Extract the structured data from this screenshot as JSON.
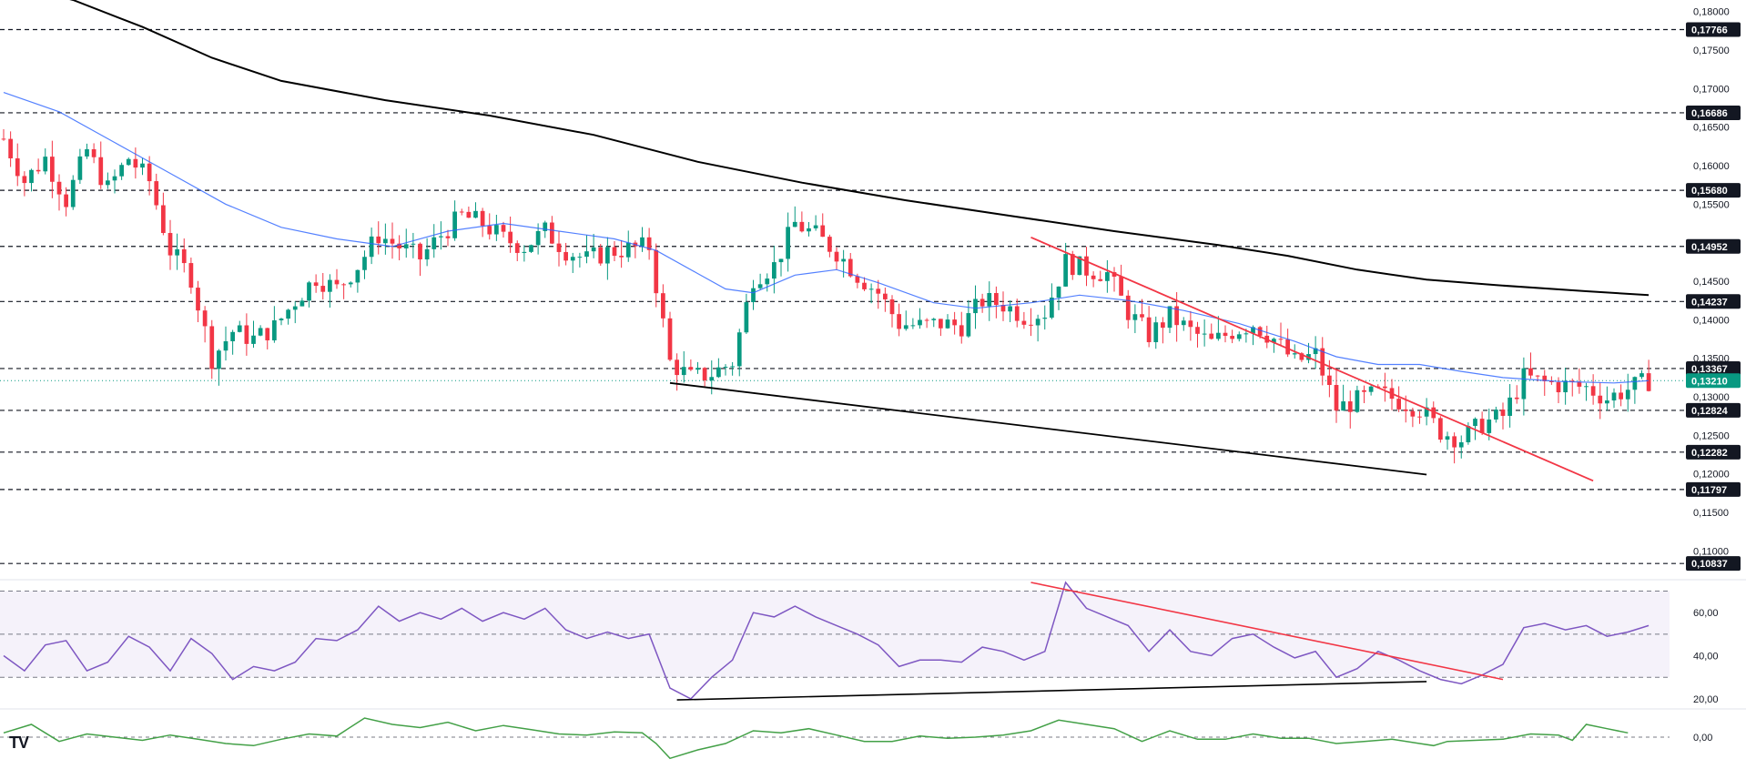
{
  "logo_text": "TV",
  "chart_data": [
    {
      "type": "candlestick",
      "pane": "price",
      "ylim": [
        0.1065,
        0.1815
      ],
      "x_range": [
        0,
        240
      ],
      "tick_labels": [
        "0,18000",
        "0,17500",
        "0,17000",
        "0,16500",
        "0,16000",
        "0,15500",
        "0,15000",
        "0,14500",
        "0,14000",
        "0,13500",
        "0,13000",
        "0,12500",
        "0,12000",
        "0,11500",
        "0,11000"
      ],
      "tick_values": [
        0.18,
        0.175,
        0.17,
        0.165,
        0.16,
        0.155,
        0.15,
        0.145,
        0.14,
        0.135,
        0.13,
        0.125,
        0.12,
        0.115,
        0.11
      ],
      "levels": [
        {
          "value": 0.17766,
          "label": "0,17766"
        },
        {
          "value": 0.16686,
          "label": "0,16686"
        },
        {
          "value": 0.1568,
          "label": "0,15680"
        },
        {
          "value": 0.14952,
          "label": "0,14952"
        },
        {
          "value": 0.14237,
          "label": "0,14237"
        },
        {
          "value": 0.13367,
          "label": "0,13367"
        },
        {
          "value": 0.12824,
          "label": "0,12824"
        },
        {
          "value": 0.12282,
          "label": "0,12282"
        },
        {
          "value": 0.11797,
          "label": "0,11797"
        },
        {
          "value": 0.10837,
          "label": "0,10837"
        }
      ],
      "current_price": {
        "value": 0.1321,
        "label": "0,13210"
      },
      "close_anchors": [
        [
          0,
          0.1635
        ],
        [
          3,
          0.158
        ],
        [
          6,
          0.161
        ],
        [
          9,
          0.1555
        ],
        [
          12,
          0.162
        ],
        [
          15,
          0.157
        ],
        [
          18,
          0.161
        ],
        [
          21,
          0.158
        ],
        [
          24,
          0.149
        ],
        [
          27,
          0.1455
        ],
        [
          30,
          0.135
        ],
        [
          33,
          0.1385
        ],
        [
          36,
          0.1375
        ],
        [
          39,
          0.139
        ],
        [
          42,
          0.1425
        ],
        [
          45,
          0.1455
        ],
        [
          48,
          0.144
        ],
        [
          51,
          0.147
        ],
        [
          54,
          0.151
        ],
        [
          57,
          0.1495
        ],
        [
          60,
          0.148
        ],
        [
          63,
          0.151
        ],
        [
          66,
          0.1535
        ],
        [
          69,
          0.1525
        ],
        [
          72,
          0.1505
        ],
        [
          75,
          0.1495
        ],
        [
          78,
          0.1515
        ],
        [
          81,
          0.149
        ],
        [
          84,
          0.1478
        ],
        [
          87,
          0.1488
        ],
        [
          90,
          0.1492
        ],
        [
          93,
          0.1495
        ],
        [
          96,
          0.1345
        ],
        [
          99,
          0.1325
        ],
        [
          102,
          0.133
        ],
        [
          105,
          0.1345
        ],
        [
          108,
          0.1455
        ],
        [
          111,
          0.147
        ],
        [
          114,
          0.1525
        ],
        [
          117,
          0.151
        ],
        [
          120,
          0.1488
        ],
        [
          123,
          0.1458
        ],
        [
          126,
          0.1435
        ],
        [
          129,
          0.1395
        ],
        [
          132,
          0.1392
        ],
        [
          135,
          0.1395
        ],
        [
          138,
          0.1392
        ],
        [
          141,
          0.1425
        ],
        [
          144,
          0.142
        ],
        [
          147,
          0.1405
        ],
        [
          150,
          0.141
        ],
        [
          153,
          0.1475
        ],
        [
          156,
          0.1465
        ],
        [
          159,
          0.146
        ],
        [
          162,
          0.141
        ],
        [
          165,
          0.138
        ],
        [
          168,
          0.1405
        ],
        [
          171,
          0.1385
        ],
        [
          174,
          0.137
        ],
        [
          177,
          0.1385
        ],
        [
          180,
          0.1395
        ],
        [
          183,
          0.1375
        ],
        [
          186,
          0.1345
        ],
        [
          189,
          0.1355
        ],
        [
          192,
          0.1285
        ],
        [
          195,
          0.1295
        ],
        [
          198,
          0.1305
        ],
        [
          201,
          0.1295
        ],
        [
          204,
          0.1285
        ],
        [
          207,
          0.1255
        ],
        [
          210,
          0.1245
        ],
        [
          213,
          0.1265
        ],
        [
          216,
          0.1275
        ],
        [
          219,
          0.1325
        ],
        [
          222,
          0.1318
        ],
        [
          225,
          0.1315
        ],
        [
          228,
          0.1312
        ],
        [
          231,
          0.1298
        ],
        [
          234,
          0.131
        ],
        [
          237,
          0.1321
        ]
      ],
      "sma50_anchors": [
        [
          0,
          0.1695
        ],
        [
          8,
          0.167
        ],
        [
          16,
          0.163
        ],
        [
          24,
          0.159
        ],
        [
          32,
          0.155
        ],
        [
          40,
          0.152
        ],
        [
          48,
          0.1505
        ],
        [
          56,
          0.1495
        ],
        [
          64,
          0.1515
        ],
        [
          72,
          0.1525
        ],
        [
          80,
          0.1515
        ],
        [
          88,
          0.1505
        ],
        [
          94,
          0.149
        ],
        [
          100,
          0.146
        ],
        [
          104,
          0.144
        ],
        [
          108,
          0.1435
        ],
        [
          114,
          0.1458
        ],
        [
          120,
          0.1465
        ],
        [
          126,
          0.1448
        ],
        [
          134,
          0.1422
        ],
        [
          140,
          0.1415
        ],
        [
          148,
          0.1422
        ],
        [
          155,
          0.1432
        ],
        [
          162,
          0.1425
        ],
        [
          170,
          0.1412
        ],
        [
          178,
          0.1395
        ],
        [
          186,
          0.1372
        ],
        [
          192,
          0.1352
        ],
        [
          198,
          0.1342
        ],
        [
          204,
          0.1342
        ],
        [
          210,
          0.1333
        ],
        [
          216,
          0.1325
        ],
        [
          224,
          0.132
        ],
        [
          232,
          0.1318
        ],
        [
          237,
          0.1321
        ]
      ],
      "sma200_anchors": [
        [
          0,
          0.1838
        ],
        [
          10,
          0.1815
        ],
        [
          20,
          0.178
        ],
        [
          30,
          0.174
        ],
        [
          40,
          0.171
        ],
        [
          55,
          0.1685
        ],
        [
          70,
          0.1665
        ],
        [
          85,
          0.164
        ],
        [
          100,
          0.1605
        ],
        [
          115,
          0.1578
        ],
        [
          130,
          0.1555
        ],
        [
          145,
          0.1535
        ],
        [
          160,
          0.1515
        ],
        [
          175,
          0.1497
        ],
        [
          185,
          0.1483
        ],
        [
          195,
          0.1465
        ],
        [
          205,
          0.1452
        ],
        [
          215,
          0.1445
        ],
        [
          228,
          0.1437
        ],
        [
          237,
          0.1432
        ]
      ],
      "trendlines": [
        {
          "name": "support",
          "color": "#000000",
          "points": [
            [
              96,
              0.1318
            ],
            [
              205,
              0.1199
            ]
          ]
        },
        {
          "name": "resistance",
          "color": "#f23645",
          "points": [
            [
              148,
              0.1507
            ],
            [
              229,
              0.1191
            ]
          ]
        }
      ]
    },
    {
      "type": "line",
      "pane": "rsi",
      "ylim": [
        17,
        74
      ],
      "tick_labels": [
        "60,00",
        "40,00",
        "20,00"
      ],
      "tick_values": [
        60,
        40,
        20
      ],
      "band": [
        30,
        70
      ],
      "midline": 50,
      "anchors": [
        [
          0,
          40
        ],
        [
          3,
          33
        ],
        [
          6,
          45
        ],
        [
          9,
          47
        ],
        [
          12,
          33
        ],
        [
          15,
          37
        ],
        [
          18,
          49
        ],
        [
          21,
          44
        ],
        [
          24,
          33
        ],
        [
          27,
          48
        ],
        [
          30,
          41
        ],
        [
          33,
          29
        ],
        [
          36,
          35
        ],
        [
          39,
          33
        ],
        [
          42,
          37
        ],
        [
          45,
          48
        ],
        [
          48,
          47
        ],
        [
          51,
          52
        ],
        [
          54,
          63
        ],
        [
          57,
          56
        ],
        [
          60,
          60
        ],
        [
          63,
          57
        ],
        [
          66,
          62
        ],
        [
          69,
          56
        ],
        [
          72,
          60
        ],
        [
          75,
          57
        ],
        [
          78,
          62
        ],
        [
          81,
          52
        ],
        [
          84,
          48
        ],
        [
          87,
          51
        ],
        [
          90,
          48
        ],
        [
          93,
          50
        ],
        [
          96,
          25
        ],
        [
          99,
          20
        ],
        [
          102,
          30
        ],
        [
          105,
          38
        ],
        [
          108,
          60
        ],
        [
          111,
          58
        ],
        [
          114,
          63
        ],
        [
          117,
          58
        ],
        [
          120,
          54
        ],
        [
          123,
          50
        ],
        [
          126,
          45
        ],
        [
          129,
          35
        ],
        [
          132,
          38
        ],
        [
          135,
          38
        ],
        [
          138,
          37
        ],
        [
          141,
          44
        ],
        [
          144,
          42
        ],
        [
          147,
          38
        ],
        [
          150,
          42
        ],
        [
          153,
          74
        ],
        [
          156,
          62
        ],
        [
          159,
          58
        ],
        [
          162,
          54
        ],
        [
          165,
          42
        ],
        [
          168,
          52
        ],
        [
          171,
          42
        ],
        [
          174,
          40
        ],
        [
          177,
          48
        ],
        [
          180,
          50
        ],
        [
          183,
          44
        ],
        [
          186,
          39
        ],
        [
          189,
          42
        ],
        [
          192,
          30
        ],
        [
          195,
          34
        ],
        [
          198,
          42
        ],
        [
          201,
          38
        ],
        [
          204,
          33
        ],
        [
          207,
          29
        ],
        [
          210,
          27
        ],
        [
          213,
          31
        ],
        [
          216,
          36
        ],
        [
          219,
          53
        ],
        [
          222,
          55
        ],
        [
          225,
          52
        ],
        [
          228,
          54
        ],
        [
          231,
          49
        ],
        [
          234,
          51
        ],
        [
          237,
          54
        ]
      ],
      "trendlines": [
        {
          "name": "rsi-support",
          "color": "#000000",
          "points": [
            [
              97,
              19.5
            ],
            [
              205,
              28
            ]
          ]
        },
        {
          "name": "rsi-resistance",
          "color": "#f23645",
          "points": [
            [
              148,
              74
            ],
            [
              216,
              29
            ]
          ]
        }
      ]
    },
    {
      "type": "line",
      "pane": "momentum",
      "ylim": [
        -0.03,
        0.024
      ],
      "tick_labels": [
        "0,00"
      ],
      "tick_values": [
        0
      ],
      "zero_line": 0,
      "anchors": [
        [
          0,
          0.004
        ],
        [
          4,
          0.012
        ],
        [
          8,
          -0.004
        ],
        [
          12,
          0.003
        ],
        [
          16,
          0
        ],
        [
          20,
          -0.003
        ],
        [
          24,
          0.002
        ],
        [
          28,
          -0.002
        ],
        [
          32,
          -0.006
        ],
        [
          36,
          -0.008
        ],
        [
          40,
          -0.002
        ],
        [
          44,
          0.003
        ],
        [
          48,
          0.001
        ],
        [
          52,
          0.018
        ],
        [
          56,
          0.012
        ],
        [
          60,
          0.009
        ],
        [
          64,
          0.014
        ],
        [
          68,
          0.006
        ],
        [
          72,
          0.011
        ],
        [
          76,
          0.007
        ],
        [
          80,
          0.003
        ],
        [
          84,
          0.002
        ],
        [
          88,
          0.005
        ],
        [
          92,
          0.004
        ],
        [
          94,
          -0.006
        ],
        [
          96,
          -0.02
        ],
        [
          100,
          -0.012
        ],
        [
          104,
          -0.006
        ],
        [
          108,
          0.006
        ],
        [
          112,
          0.004
        ],
        [
          116,
          0.008
        ],
        [
          120,
          0.002
        ],
        [
          124,
          -0.004
        ],
        [
          128,
          -0.004
        ],
        [
          132,
          0.001
        ],
        [
          136,
          -0.001
        ],
        [
          140,
          0
        ],
        [
          144,
          0.002
        ],
        [
          148,
          0.006
        ],
        [
          152,
          0.016
        ],
        [
          156,
          0.012
        ],
        [
          160,
          0.008
        ],
        [
          164,
          -0.004
        ],
        [
          168,
          0.006
        ],
        [
          172,
          -0.002
        ],
        [
          176,
          -0.002
        ],
        [
          180,
          0.003
        ],
        [
          184,
          -0.001
        ],
        [
          188,
          -0.001
        ],
        [
          192,
          -0.006
        ],
        [
          196,
          -0.004
        ],
        [
          200,
          -0.002
        ],
        [
          204,
          -0.006
        ],
        [
          206,
          -0.008
        ],
        [
          208,
          -0.004
        ],
        [
          212,
          -0.003
        ],
        [
          216,
          -0.002
        ],
        [
          220,
          0.003
        ],
        [
          224,
          0.002
        ],
        [
          226,
          -0.003
        ],
        [
          228,
          0.012
        ],
        [
          231,
          0.008
        ],
        [
          234,
          0.004
        ]
      ]
    }
  ]
}
